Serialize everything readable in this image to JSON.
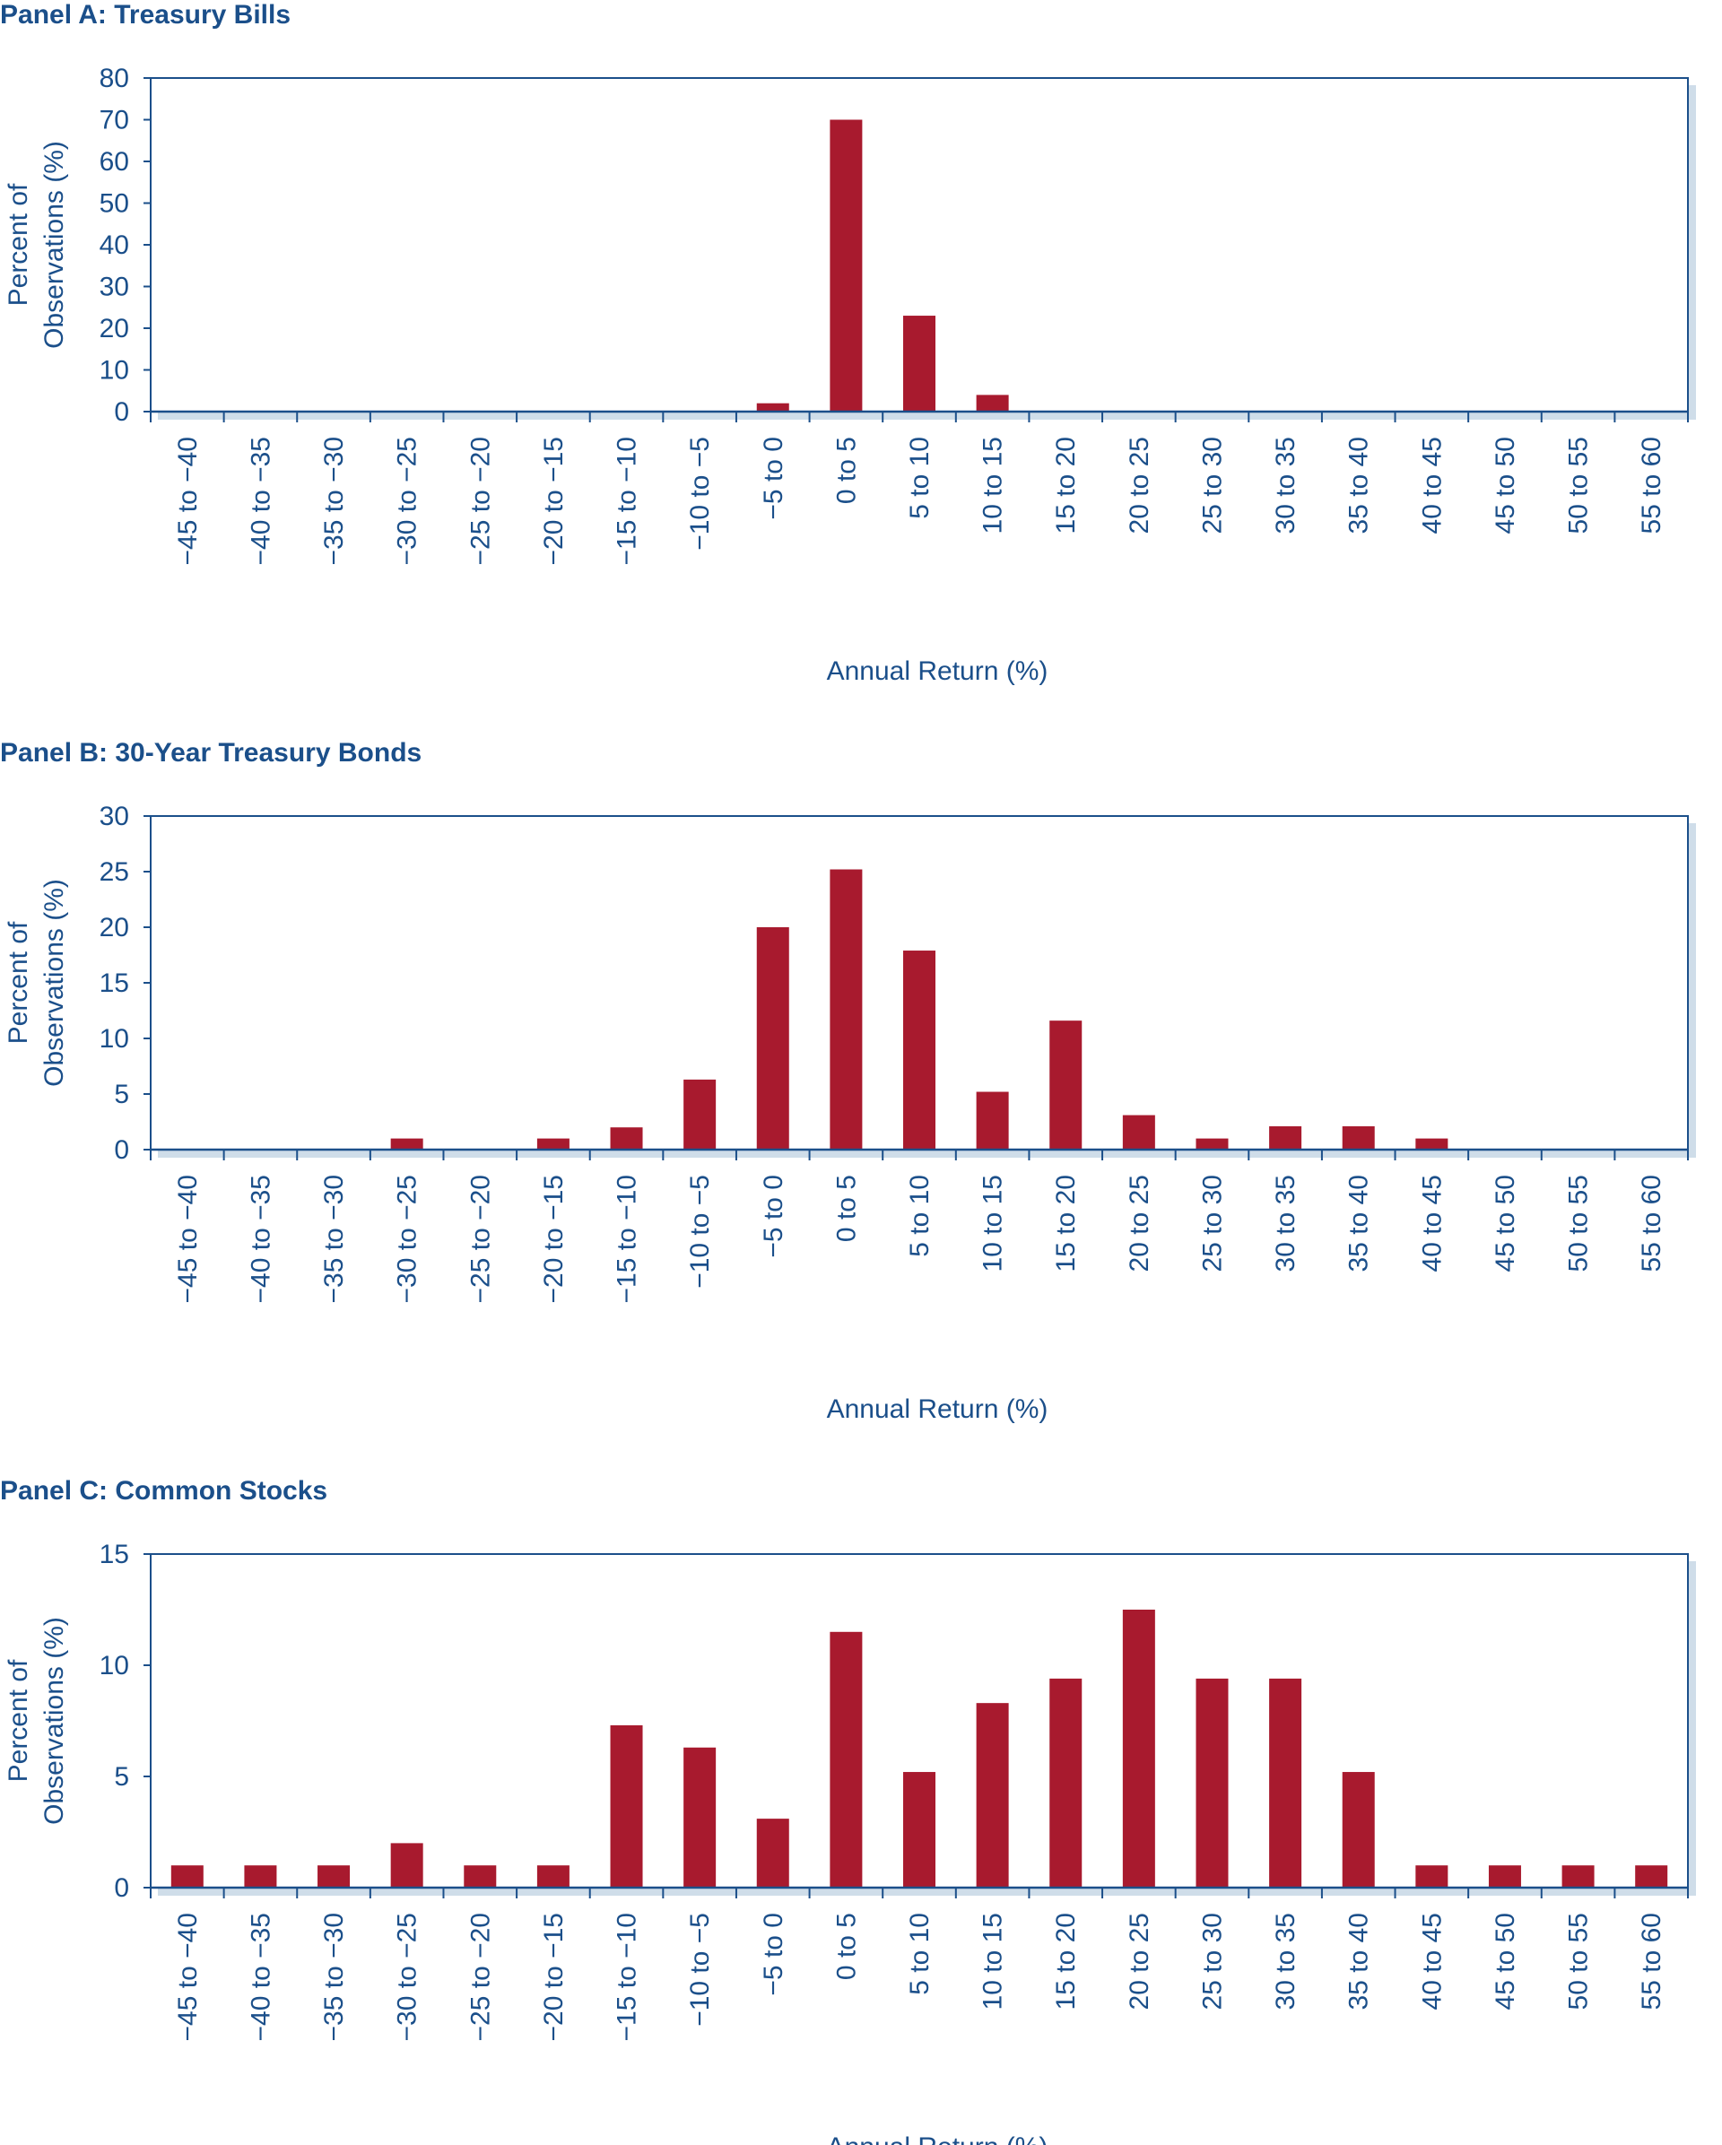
{
  "colors": {
    "bar": "#a81a2e",
    "frame": "#1b4f8a",
    "text": "#1b4f8a",
    "shadow": "#cfdde9"
  },
  "categories": [
    "−45 to −40",
    "−40 to −35",
    "−35 to −30",
    "−30 to −25",
    "−25 to −20",
    "−20 to −15",
    "−15 to −10",
    "−10 to −5",
    "−5 to 0",
    "0 to 5",
    "5 to 10",
    "10 to 15",
    "15 to 20",
    "20 to 25",
    "25 to 30",
    "30 to 35",
    "35 to 40",
    "40 to 45",
    "45 to 50",
    "50 to 55",
    "55 to 60"
  ],
  "chart_data": [
    {
      "type": "bar",
      "title": "Panel A: Treasury Bills",
      "ylabel_line1": "Percent of",
      "ylabel_line2": "Observations (%)",
      "xlabel": "Annual Return (%)",
      "ylim": [
        0,
        80
      ],
      "yticks": [
        0,
        10,
        20,
        30,
        40,
        50,
        60,
        70,
        80
      ],
      "values": [
        0,
        0,
        0,
        0,
        0,
        0,
        0,
        0,
        2,
        70,
        23,
        4,
        0,
        0,
        0,
        0,
        0,
        0,
        0,
        0,
        0
      ]
    },
    {
      "type": "bar",
      "title": "Panel B: 30-Year Treasury Bonds",
      "ylabel_line1": "Percent of",
      "ylabel_line2": "Observations (%)",
      "xlabel": "Annual Return (%)",
      "ylim": [
        0,
        30
      ],
      "yticks": [
        0,
        5,
        10,
        15,
        20,
        25,
        30
      ],
      "values": [
        0,
        0,
        0,
        1,
        0,
        1,
        2,
        6.3,
        20,
        25.2,
        17.9,
        5.2,
        11.6,
        3.1,
        1,
        2.1,
        2.1,
        1,
        0,
        0,
        0
      ]
    },
    {
      "type": "bar",
      "title": "Panel C: Common Stocks",
      "ylabel_line1": "Percent of",
      "ylabel_line2": "Observations (%)",
      "xlabel": "Annual Return (%)",
      "ylim": [
        0,
        15
      ],
      "yticks": [
        0,
        5,
        10,
        15
      ],
      "values": [
        1,
        1,
        1,
        2,
        1,
        1,
        7.3,
        6.3,
        3.1,
        11.5,
        5.2,
        8.3,
        9.4,
        12.5,
        9.4,
        9.4,
        5.2,
        1,
        1,
        1,
        1
      ]
    }
  ]
}
